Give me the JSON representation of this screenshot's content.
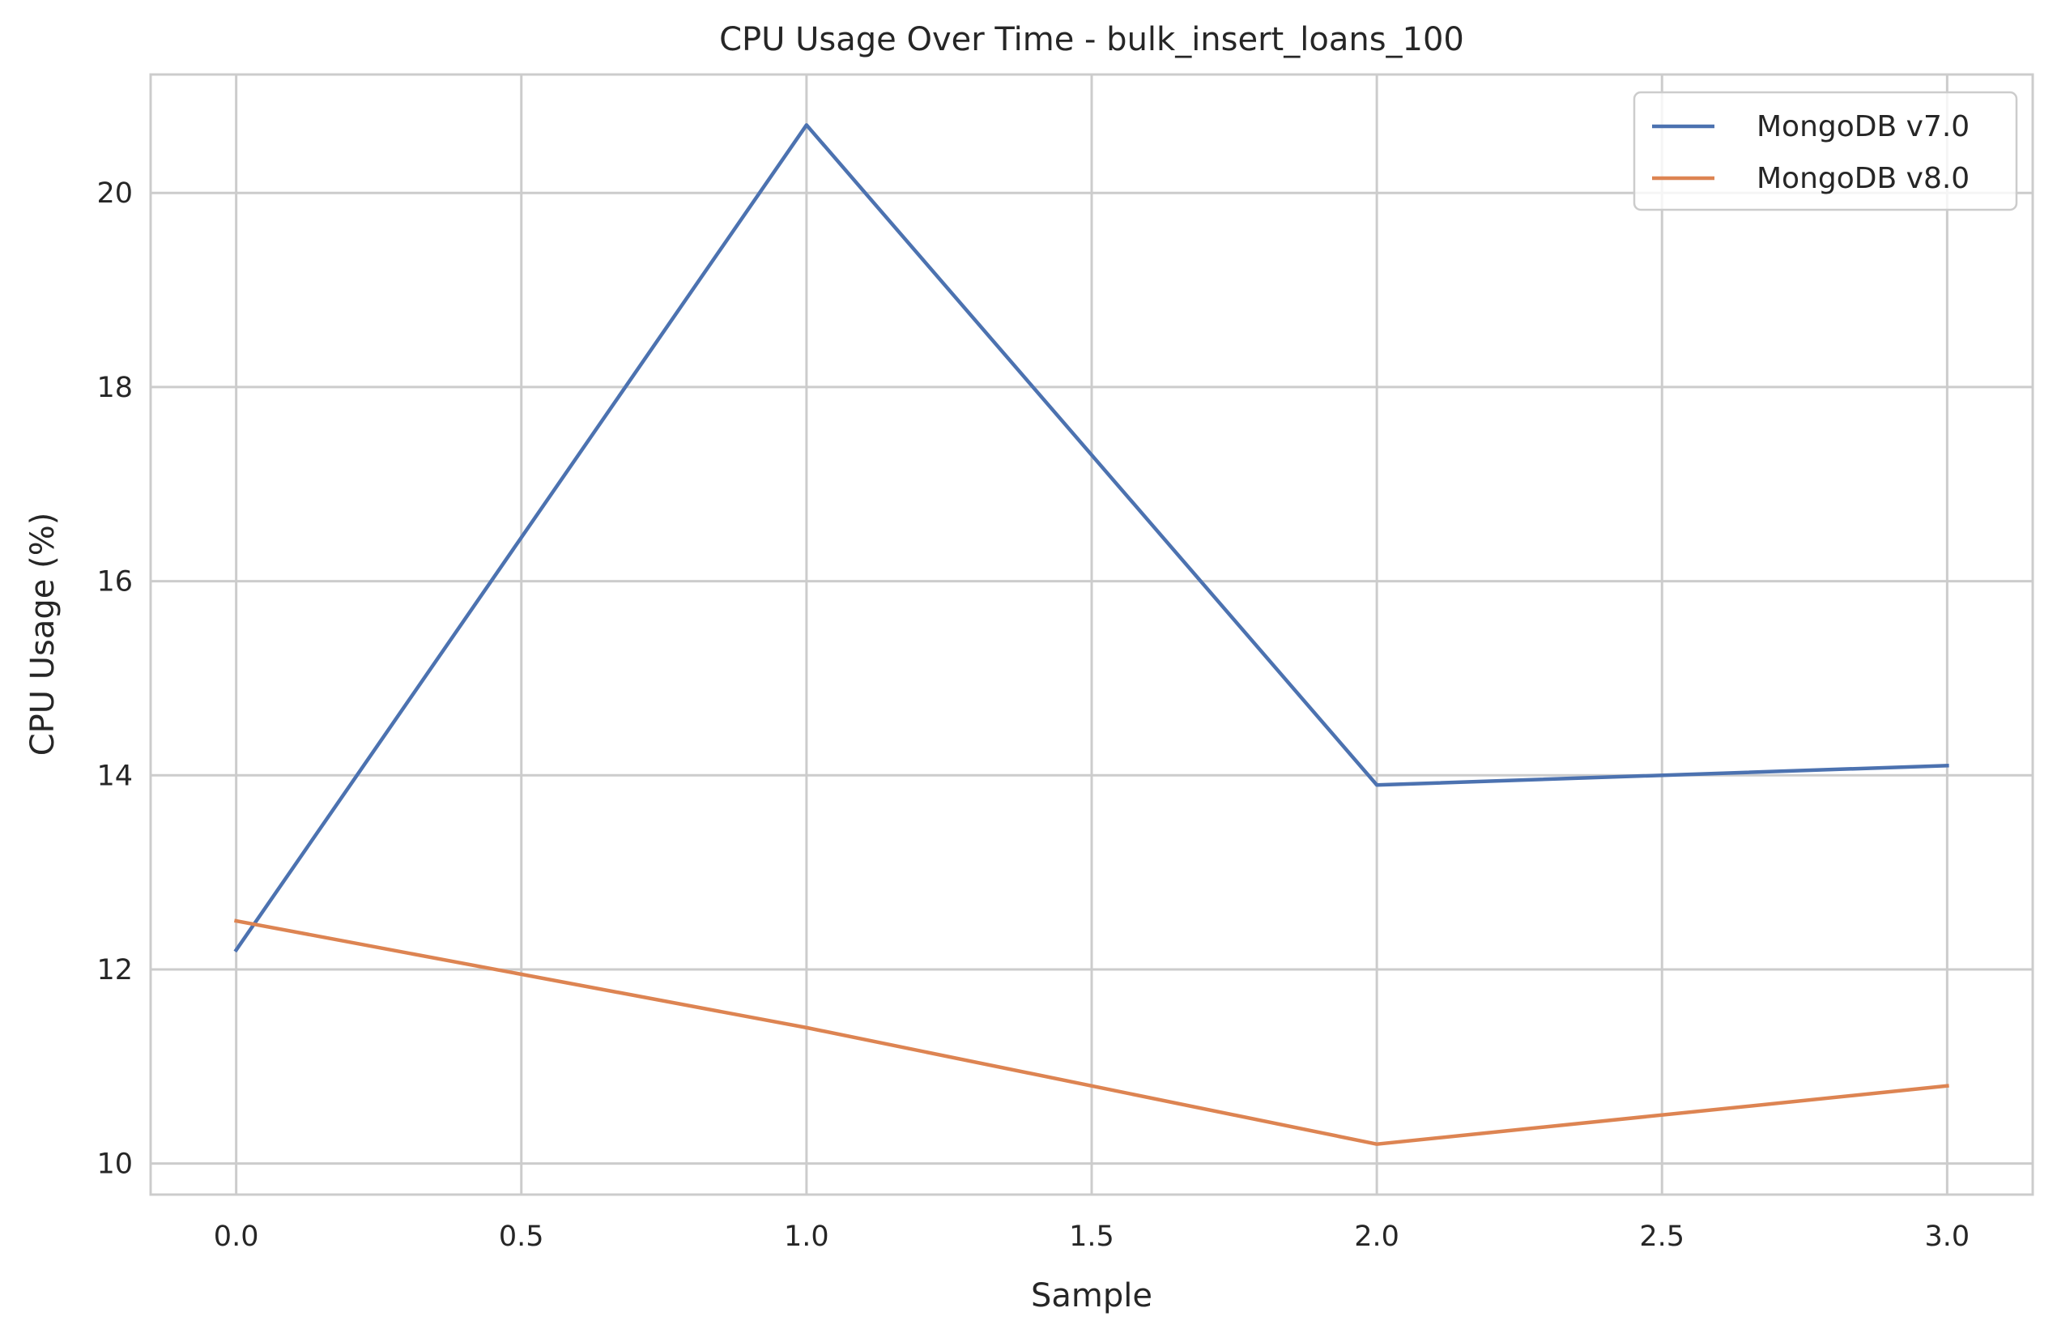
{
  "chart_data": {
    "type": "line",
    "title": "CPU Usage Over Time - bulk_insert_loans_100",
    "xlabel": "Sample",
    "ylabel": "CPU Usage (%)",
    "x": [
      0,
      1,
      2,
      3
    ],
    "series": [
      {
        "name": "MongoDB v7.0",
        "color": "#4c72b0",
        "values": [
          12.2,
          20.7,
          13.9,
          14.1
        ]
      },
      {
        "name": "MongoDB v8.0",
        "color": "#dd8452",
        "values": [
          12.5,
          11.4,
          10.2,
          10.8
        ]
      }
    ],
    "xlim": [
      -0.15,
      3.15
    ],
    "ylim": [
      9.68,
      21.22
    ],
    "xticks": [
      0.0,
      0.5,
      1.0,
      1.5,
      2.0,
      2.5,
      3.0
    ],
    "xtick_labels": [
      "0.0",
      "0.5",
      "1.0",
      "1.5",
      "2.0",
      "2.5",
      "3.0"
    ],
    "yticks": [
      10,
      12,
      14,
      16,
      18,
      20
    ],
    "ytick_labels": [
      "10",
      "12",
      "14",
      "16",
      "18",
      "20"
    ],
    "grid": true,
    "legend_position": "top-right",
    "colors": {
      "grid": "#cccccc",
      "axes_edge": "#cccccc",
      "text": "#262626",
      "legend_edge": "#cccccc"
    }
  }
}
